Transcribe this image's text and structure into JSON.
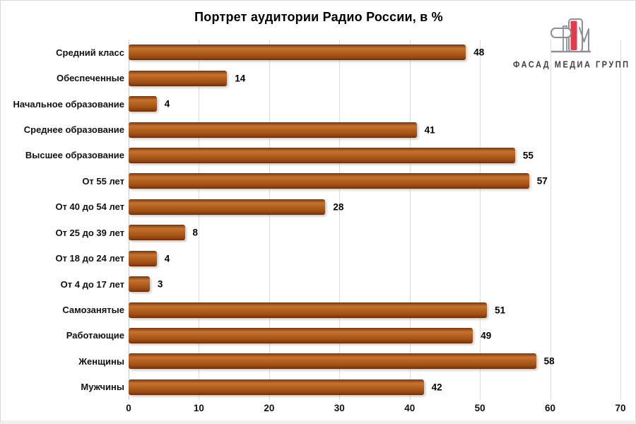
{
  "title": "Портрет аудитории Радио России, в %",
  "logo": {
    "text": "ФАСАД МЕДИА ГРУПП",
    "icon": "building-monogram-icon",
    "accent_color": "#e23b4e",
    "outline_color": "#8a8f98",
    "text_color": "#3f3f46"
  },
  "chart_data": {
    "type": "bar",
    "orientation": "horizontal",
    "title": "Портрет аудитории Радио России, в %",
    "categories": [
      "Средний класс",
      "Обеспеченные",
      "Начальное образование",
      "Среднее образование",
      "Высшее образование",
      "От 55 лет",
      "От 40 до 54 лет",
      "От 25 до 39 лет",
      "От 18 до 24 лет",
      "От 4 до 17 лет",
      "Самозанятые",
      "Работающие",
      "Женщины",
      "Мужчины"
    ],
    "values": [
      48,
      14,
      4,
      41,
      55,
      57,
      28,
      8,
      4,
      3,
      51,
      49,
      58,
      42
    ],
    "xlabel": "",
    "ylabel": "",
    "xlim": [
      0,
      70
    ],
    "x_ticks": [
      0,
      10,
      20,
      30,
      40,
      50,
      60,
      70
    ],
    "bar_color": "#A9561E",
    "grid": "vertical",
    "legend": "none",
    "value_labels": true
  }
}
